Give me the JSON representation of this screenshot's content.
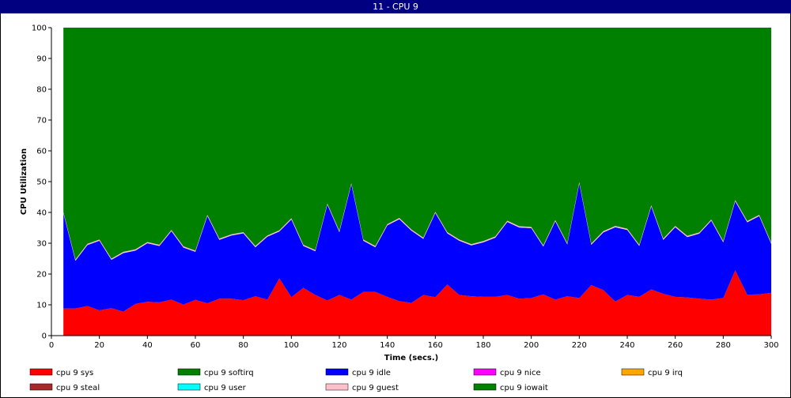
{
  "window": {
    "title": "11 - CPU 9"
  },
  "colors": {
    "sys": "#ff0000",
    "softirq": "#008000",
    "idle": "#0000ff",
    "nice": "#ff00ff",
    "irq": "#ffa500",
    "steal": "#a52a2a",
    "user": "#00ffff",
    "guest": "#ffc0cb",
    "iowait": "#008000"
  },
  "chart_data": {
    "type": "area",
    "stacked": true,
    "xlabel": "Time (secs.)",
    "ylabel": "CPU Utilization",
    "xlim": [
      0,
      300
    ],
    "ylim": [
      0,
      100
    ],
    "xticks": [
      0,
      20,
      40,
      60,
      80,
      100,
      120,
      140,
      160,
      180,
      200,
      220,
      240,
      260,
      280,
      300
    ],
    "yticks": [
      0,
      10,
      20,
      30,
      40,
      50,
      60,
      70,
      80,
      90,
      100
    ],
    "x": [
      5,
      10,
      15,
      20,
      25,
      30,
      35,
      40,
      45,
      50,
      55,
      60,
      65,
      70,
      75,
      80,
      85,
      90,
      95,
      100,
      105,
      110,
      115,
      120,
      125,
      130,
      135,
      140,
      145,
      150,
      155,
      160,
      165,
      170,
      175,
      180,
      185,
      190,
      195,
      200,
      205,
      210,
      215,
      220,
      225,
      230,
      235,
      240,
      245,
      250,
      255,
      260,
      265,
      270,
      275,
      280,
      285,
      290,
      295,
      300
    ],
    "series": [
      {
        "name": "cpu 9 sys",
        "color_key": "sys",
        "values": [
          8.8,
          8.8,
          9.6,
          8.2,
          8.9,
          7.8,
          10.3,
          11.0,
          10.8,
          11.7,
          10.1,
          11.6,
          10.5,
          12.0,
          12.0,
          11.5,
          12.8,
          11.7,
          18.6,
          12.5,
          15.5,
          13.2,
          11.4,
          13.2,
          11.7,
          14.2,
          14.2,
          12.6,
          11.2,
          10.6,
          13.2,
          12.5,
          16.6,
          13.2,
          12.8,
          12.6,
          12.6,
          13.2,
          12.0,
          12.2,
          13.4,
          11.7,
          12.8,
          12.2,
          16.4,
          14.8,
          11.1,
          13.2,
          12.6,
          15.0,
          13.6,
          12.6,
          12.4,
          12.0,
          11.7,
          12.2,
          21.2,
          13.3,
          13.4,
          13.9
        ]
      },
      {
        "name": "cpu 9 softirq",
        "color_key": "softirq",
        "values": [
          0,
          0,
          0,
          0,
          0,
          0,
          0,
          0,
          0,
          0,
          0,
          0,
          0,
          0,
          0,
          0,
          0,
          0,
          0,
          0,
          0,
          0,
          0,
          0,
          0,
          0,
          0,
          0,
          0,
          0,
          0,
          0,
          0,
          0,
          0,
          0,
          0,
          0,
          0,
          0,
          0,
          0,
          0,
          0,
          0,
          0,
          0,
          0,
          0,
          0,
          0,
          0,
          0,
          0,
          0,
          0,
          0,
          0,
          0,
          0
        ]
      },
      {
        "name": "cpu 9 idle",
        "color_key": "idle",
        "values": [
          30.9,
          15.5,
          19.8,
          22.6,
          15.7,
          19.0,
          17.3,
          19.0,
          18.3,
          22.2,
          18.5,
          15.6,
          28.3,
          19.1,
          20.5,
          21.7,
          15.9,
          20.4,
          15.2,
          25.2,
          13.6,
          14.2,
          31.1,
          20.4,
          37.4,
          16.6,
          14.5,
          23.2,
          26.6,
          23.5,
          18.2,
          27.3,
          16.6,
          17.6,
          16.5,
          17.7,
          19.2,
          23.7,
          23.1,
          22.7,
          15.5,
          25.4,
          16.8,
          37.2,
          13.1,
          18.7,
          24.1,
          21.1,
          16.5,
          26.9,
          17.5,
          22.6,
          19.6,
          21.1,
          25.6,
          18.1,
          22.4,
          23.5,
          25.4,
          15.9
        ]
      },
      {
        "name": "cpu 9 nice",
        "color_key": "nice",
        "values": [
          0,
          0,
          0,
          0,
          0,
          0,
          0,
          0,
          0,
          0,
          0,
          0,
          0,
          0,
          0,
          0,
          0,
          0,
          0,
          0,
          0,
          0,
          0,
          0,
          0,
          0,
          0,
          0,
          0,
          0,
          0,
          0,
          0,
          0,
          0,
          0,
          0,
          0,
          0,
          0,
          0,
          0,
          0,
          0,
          0,
          0,
          0,
          0,
          0,
          0,
          0,
          0,
          0,
          0,
          0,
          0,
          0,
          0,
          0,
          0
        ]
      },
      {
        "name": "cpu 9 irq",
        "color_key": "irq",
        "values": [
          0,
          0,
          0,
          0,
          0,
          0,
          0,
          0,
          0,
          0,
          0,
          0,
          0,
          0,
          0,
          0,
          0,
          0,
          0,
          0,
          0,
          0,
          0,
          0,
          0,
          0,
          0,
          0,
          0,
          0,
          0,
          0,
          0,
          0,
          0,
          0,
          0,
          0,
          0,
          0,
          0,
          0,
          0,
          0,
          0,
          0,
          0,
          0,
          0,
          0,
          0,
          0,
          0,
          0,
          0,
          0,
          0,
          0,
          0,
          0
        ]
      },
      {
        "name": "cpu 9 steal",
        "color_key": "steal",
        "values": [
          0,
          0,
          0,
          0,
          0,
          0,
          0,
          0,
          0,
          0,
          0,
          0,
          0,
          0,
          0,
          0,
          0,
          0,
          0,
          0,
          0,
          0,
          0,
          0,
          0,
          0,
          0,
          0,
          0,
          0,
          0,
          0,
          0,
          0,
          0,
          0,
          0,
          0,
          0,
          0,
          0,
          0,
          0,
          0,
          0,
          0,
          0,
          0,
          0,
          0,
          0,
          0,
          0,
          0,
          0,
          0,
          0,
          0,
          0,
          0
        ]
      },
      {
        "name": "cpu 9 user",
        "color_key": "user",
        "values": [
          0,
          0,
          0,
          0,
          0,
          0,
          0,
          0,
          0,
          0,
          0,
          0,
          0,
          0,
          0,
          0,
          0,
          0,
          0,
          0,
          0,
          0,
          0,
          0,
          0,
          0,
          0,
          0,
          0,
          0,
          0,
          0,
          0,
          0,
          0,
          0,
          0,
          0,
          0,
          0,
          0,
          0,
          0,
          0,
          0,
          0,
          0,
          0,
          0,
          0,
          0,
          0,
          0,
          0,
          0,
          0,
          0,
          0,
          0,
          0
        ]
      },
      {
        "name": "cpu 9 guest",
        "color_key": "guest",
        "values": [
          0.4,
          0.4,
          0.4,
          0.4,
          0.4,
          0.4,
          0.4,
          0.4,
          0.4,
          0.4,
          0.4,
          0.4,
          0.4,
          0.4,
          0.4,
          0.4,
          0.4,
          0.4,
          0.4,
          0.4,
          0.4,
          0.4,
          0.4,
          0.4,
          0.4,
          0.4,
          0.4,
          0.4,
          0.4,
          0.4,
          0.4,
          0.4,
          0.4,
          0.4,
          0.4,
          0.4,
          0.4,
          0.4,
          0.4,
          0.4,
          0.4,
          0.4,
          0.4,
          0.4,
          0.4,
          0.4,
          0.4,
          0.4,
          0.4,
          0.4,
          0.4,
          0.4,
          0.4,
          0.4,
          0.4,
          0.4,
          0.4,
          0.4,
          0.4,
          0.4
        ]
      },
      {
        "name": "cpu 9 iowait",
        "color_key": "iowait",
        "values": [
          59.9,
          75.3,
          70.2,
          68.8,
          75.0,
          72.8,
          72.0,
          69.6,
          70.5,
          65.7,
          71.0,
          72.4,
          60.8,
          68.5,
          67.1,
          66.4,
          70.9,
          67.5,
          65.8,
          61.9,
          70.5,
          72.2,
          57.1,
          66.0,
          50.5,
          68.8,
          70.9,
          63.8,
          61.8,
          65.5,
          68.2,
          59.8,
          66.4,
          68.8,
          70.3,
          69.3,
          67.8,
          62.7,
          64.5,
          64.7,
          70.7,
          62.5,
          70.0,
          50.2,
          70.1,
          66.1,
          64.4,
          65.3,
          70.5,
          57.7,
          68.5,
          64.4,
          67.6,
          66.5,
          62.3,
          69.3,
          56.0,
          62.8,
          60.8,
          69.8
        ]
      }
    ]
  },
  "legend": [
    {
      "label": "cpu 9 sys",
      "color_key": "sys"
    },
    {
      "label": "cpu 9 softirq",
      "color_key": "softirq"
    },
    {
      "label": "cpu 9 idle",
      "color_key": "idle"
    },
    {
      "label": "cpu 9 nice",
      "color_key": "nice"
    },
    {
      "label": "cpu 9 irq",
      "color_key": "irq"
    },
    {
      "label": "cpu 9 steal",
      "color_key": "steal"
    },
    {
      "label": "cpu 9 user",
      "color_key": "user"
    },
    {
      "label": "cpu 9 guest",
      "color_key": "guest"
    },
    {
      "label": "cpu 9 iowait",
      "color_key": "iowait"
    }
  ]
}
